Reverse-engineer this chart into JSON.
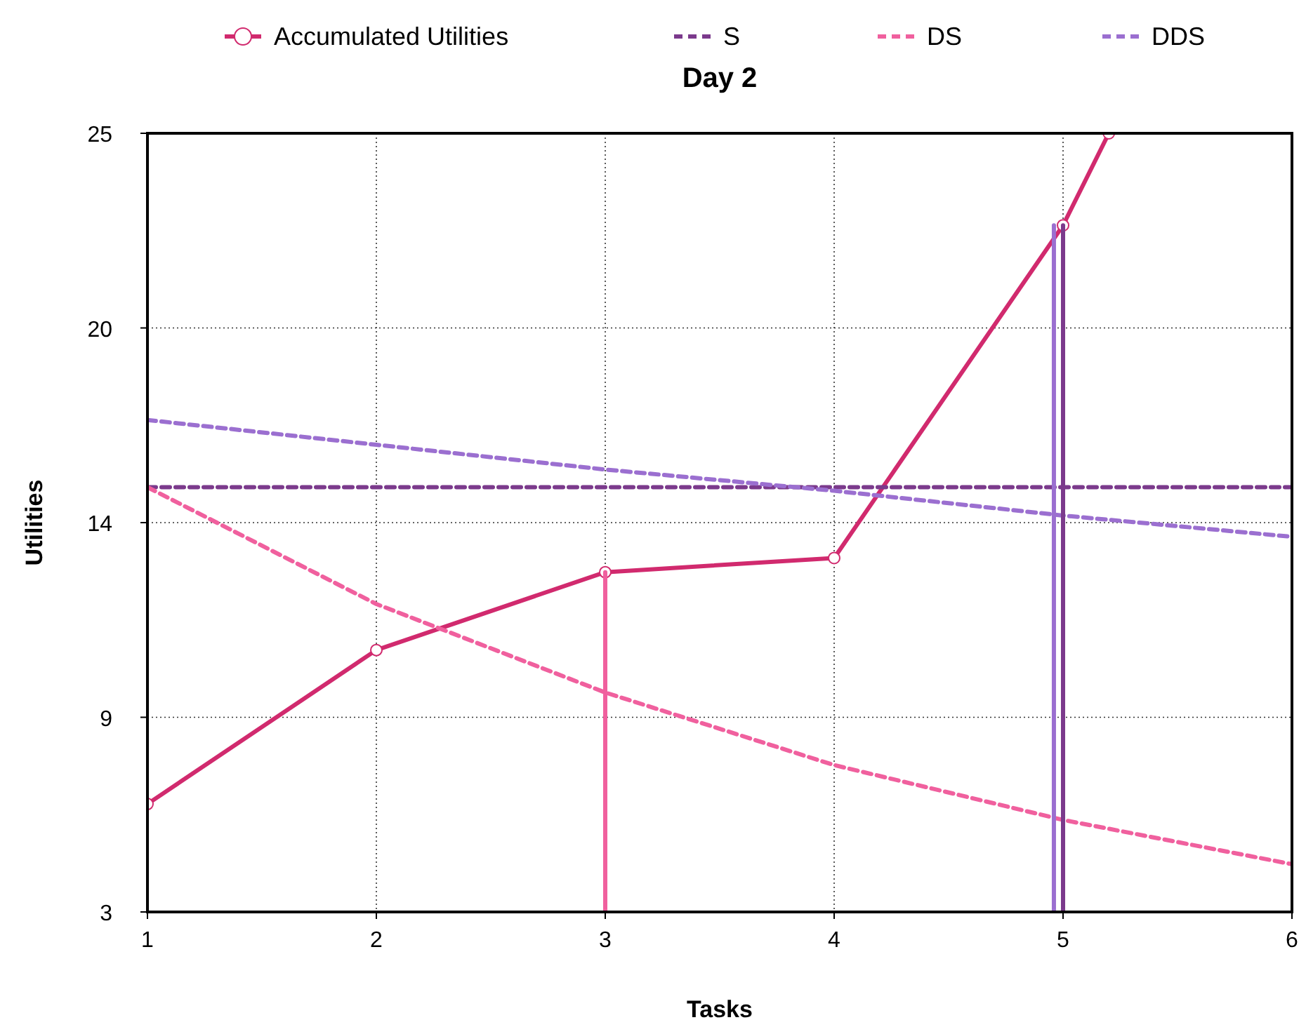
{
  "chart_data": {
    "type": "line",
    "title": "Day 2",
    "xlabel": "Tasks",
    "ylabel": "Utilities",
    "xlim": [
      1,
      6
    ],
    "xticks": [
      1,
      2,
      3,
      4,
      5,
      6
    ],
    "ylim": [
      3,
      25
    ],
    "yticks": [
      3,
      {
        "value": 8.5,
        "label": "9"
      },
      14,
      {
        "value": 19.5,
        "label": "20"
      },
      25
    ],
    "grid": true,
    "legend": "top",
    "line_style": "solid",
    "series": [
      {
        "name": "Accumulated Utilities",
        "color": "#d12a6e",
        "marker": "circle",
        "x": [
          1,
          2,
          3,
          4,
          5,
          5.2
        ],
        "values": [
          6.05,
          10.4,
          12.6,
          13.0,
          22.4,
          25
        ]
      },
      {
        "name": "S",
        "color": "#7b3a8c",
        "marker": "none",
        "line_style": "dashed",
        "x": [
          1,
          6
        ],
        "values": [
          15.0,
          15.0
        ]
      },
      {
        "name": "DS",
        "color": "#f0609e",
        "marker": "none",
        "line_style": "dashed",
        "x": [
          1,
          2,
          3,
          4,
          5,
          6
        ],
        "values": [
          15.0,
          11.7,
          9.2,
          7.15,
          5.6,
          4.35
        ]
      },
      {
        "name": "DDS",
        "color": "#9b6fd0",
        "marker": "none",
        "line_style": "dashed",
        "x": [
          1,
          2,
          3,
          4,
          5,
          6
        ],
        "values": [
          16.9,
          16.2,
          15.5,
          14.9,
          14.2,
          13.6
        ]
      },
      {
        "color": "#f0609e",
        "marker": "none",
        "x": [
          3,
          3
        ],
        "values": [
          3,
          12.6
        ]
      },
      {
        "color": "#9b6fd0",
        "marker": "none",
        "x": [
          4.96,
          4.96
        ],
        "values": [
          3,
          22.4
        ]
      },
      {
        "color": "#7b3a8c",
        "marker": "none",
        "x": [
          5,
          5
        ],
        "values": [
          3,
          22.4
        ]
      }
    ]
  }
}
